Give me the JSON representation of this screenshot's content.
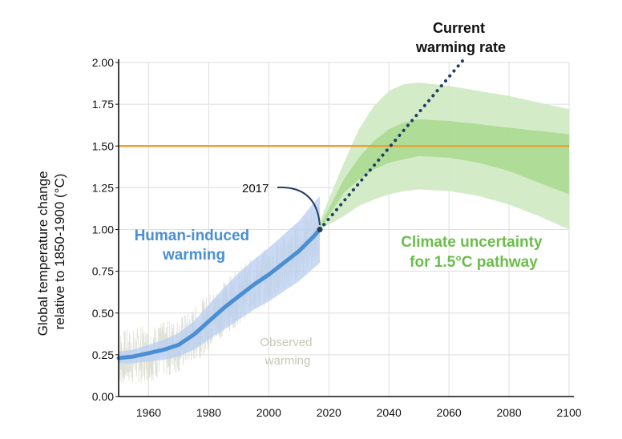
{
  "chart_data": {
    "type": "line",
    "title": "",
    "xlabel": "",
    "ylabel": "Global temperature change relative to 1850-1900 (°C)",
    "ylabel_lines": [
      "Global temperature change",
      "relative to 1850-1900 (°C)"
    ],
    "xlim": [
      1950,
      2100
    ],
    "ylim": [
      0,
      2.0
    ],
    "x_ticks": [
      1960,
      1980,
      2000,
      2020,
      2040,
      2060,
      2080,
      2100
    ],
    "y_ticks": [
      "0.00",
      "0.25",
      "0.50",
      "0.75",
      "1.00",
      "1.25",
      "1.50",
      "1.75",
      "2.00"
    ],
    "grid": true,
    "reference_line": {
      "y": 1.5,
      "label": "1.50",
      "color": "#f0a030"
    },
    "series": [
      {
        "name": "Human-induced warming",
        "name_lines": [
          "Human-induced",
          "warming"
        ],
        "color": "#4a8fd4",
        "x": [
          1950,
          1955,
          1960,
          1965,
          1970,
          1975,
          1980,
          1985,
          1990,
          1995,
          2000,
          2005,
          2010,
          2015,
          2017
        ],
        "y": [
          0.23,
          0.24,
          0.26,
          0.28,
          0.31,
          0.37,
          0.45,
          0.53,
          0.6,
          0.67,
          0.73,
          0.8,
          0.87,
          0.96,
          1.0
        ],
        "band_low": [
          0.2,
          0.2,
          0.21,
          0.22,
          0.24,
          0.28,
          0.34,
          0.4,
          0.46,
          0.52,
          0.57,
          0.63,
          0.69,
          0.77,
          0.8
        ],
        "band_high": [
          0.27,
          0.28,
          0.31,
          0.34,
          0.38,
          0.45,
          0.55,
          0.65,
          0.74,
          0.82,
          0.89,
          0.97,
          1.05,
          1.16,
          1.2
        ]
      },
      {
        "name": "Current warming rate",
        "name_lines": [
          "Current",
          "warming rate"
        ],
        "color": "#1f3f66",
        "style": "dotted",
        "x": [
          2017,
          2065
        ],
        "y": [
          1.0,
          2.02
        ]
      },
      {
        "name": "Climate uncertainty for 1.5°C pathway",
        "name_lines": [
          "Climate uncertainty",
          "for 1.5°C pathway"
        ],
        "color": "#6bbd4a",
        "x": [
          2017,
          2025,
          2030,
          2035,
          2040,
          2045,
          2050,
          2060,
          2070,
          2080,
          2090,
          2100
        ],
        "outer_low": [
          1.0,
          1.08,
          1.14,
          1.18,
          1.21,
          1.23,
          1.24,
          1.23,
          1.2,
          1.15,
          1.08,
          1.0
        ],
        "outer_high": [
          1.05,
          1.4,
          1.6,
          1.74,
          1.83,
          1.87,
          1.88,
          1.86,
          1.83,
          1.8,
          1.76,
          1.72
        ],
        "inner_low": [
          1.0,
          1.22,
          1.3,
          1.36,
          1.4,
          1.42,
          1.44,
          1.43,
          1.4,
          1.35,
          1.28,
          1.21
        ],
        "inner_high": [
          1.02,
          1.3,
          1.43,
          1.53,
          1.6,
          1.64,
          1.66,
          1.65,
          1.63,
          1.61,
          1.59,
          1.57
        ]
      }
    ],
    "observed_label_lines": [
      "Observed",
      "warming"
    ],
    "annotations": [
      {
        "text": "2017",
        "x": 2017,
        "y": 1.0
      }
    ]
  }
}
